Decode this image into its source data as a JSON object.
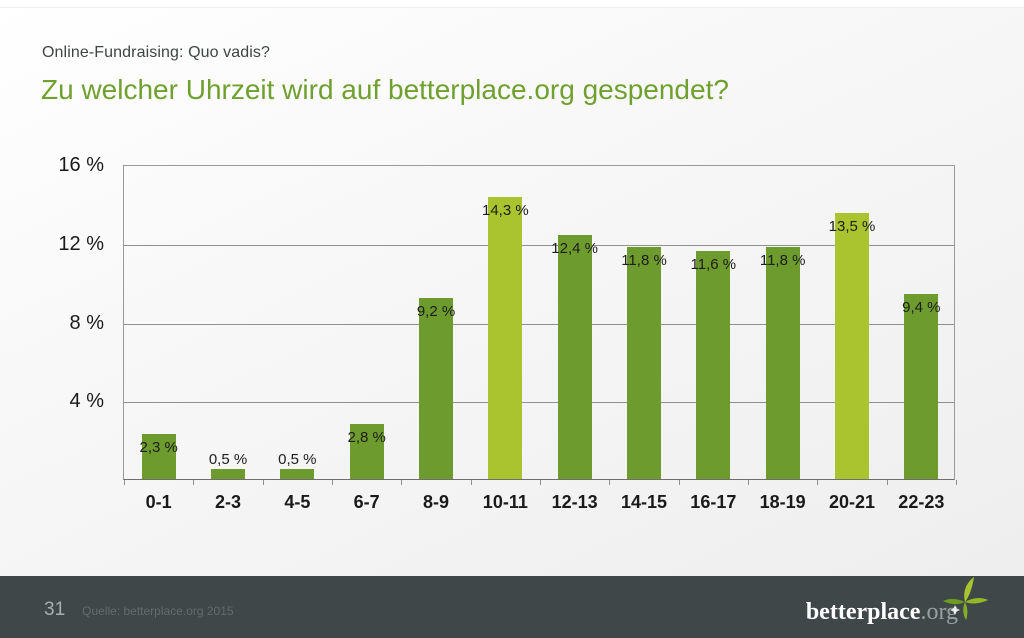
{
  "header": {
    "subtitle": "Online-Fundraising: Quo vadis?",
    "title": "Zu welcher Uhrzeit wird auf betterplace.org gespendet?"
  },
  "chart_data": {
    "type": "bar",
    "title": "Zu welcher Uhrzeit wird auf betterplace.org gespendet?",
    "categories": [
      "0-1",
      "2-3",
      "4-5",
      "6-7",
      "8-9",
      "10-11",
      "12-13",
      "14-15",
      "16-17",
      "18-19",
      "20-21",
      "22-23"
    ],
    "values": [
      2.3,
      0.5,
      0.5,
      2.8,
      9.2,
      14.3,
      12.4,
      11.8,
      11.6,
      11.8,
      13.5,
      9.4
    ],
    "value_labels": [
      "2,3 %",
      "0,5 %",
      "0,5 %",
      "2,8 %",
      "9,2 %",
      "14,3 %",
      "12,4 %",
      "11,8 %",
      "11,6 %",
      "11,8 %",
      "13,5 %",
      "9,4 %"
    ],
    "highlight_indices": [
      5,
      10
    ],
    "bar_color": "#6d9b2d",
    "highlight_color": "#a9c42e",
    "y_tick_labels": [
      "16 %",
      "12 %",
      "8 %",
      "4 %"
    ],
    "y_tick_values": [
      16,
      12,
      8,
      4
    ],
    "ylim": [
      0,
      16
    ],
    "xlabel": "",
    "ylabel": "",
    "grid": true,
    "legend": false
  },
  "footer": {
    "page_number": "31",
    "source": "Quelle: betterplace.org 2015",
    "logo_name": "betterplace",
    "logo_suffix": ".org"
  }
}
